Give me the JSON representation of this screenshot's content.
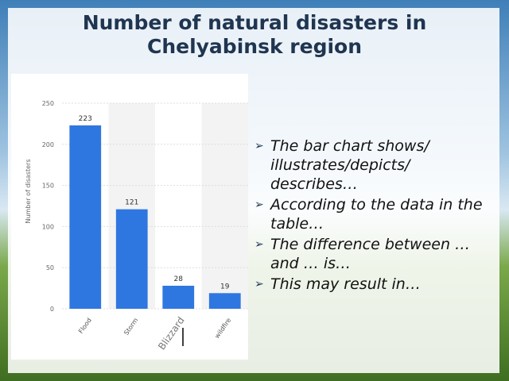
{
  "slide": {
    "title": "Number of natural disasters in Chelyabinsk region",
    "bullets": [
      "The bar chart shows/ illustrates/depicts/ describes…",
      "According to the data in the table…",
      "The difference between … and … is…",
      "This may result in…"
    ]
  },
  "chart_data": {
    "type": "bar",
    "y_label": "Number of disasters",
    "categories": [
      "Flood",
      "Storm",
      "Blizzard",
      "wildfire"
    ],
    "values": [
      223,
      121,
      28,
      19
    ],
    "color": "#2f77e0",
    "ylim": [
      0,
      250
    ],
    "yticks": [
      0,
      50,
      100,
      150,
      200,
      250
    ],
    "grid": true
  }
}
